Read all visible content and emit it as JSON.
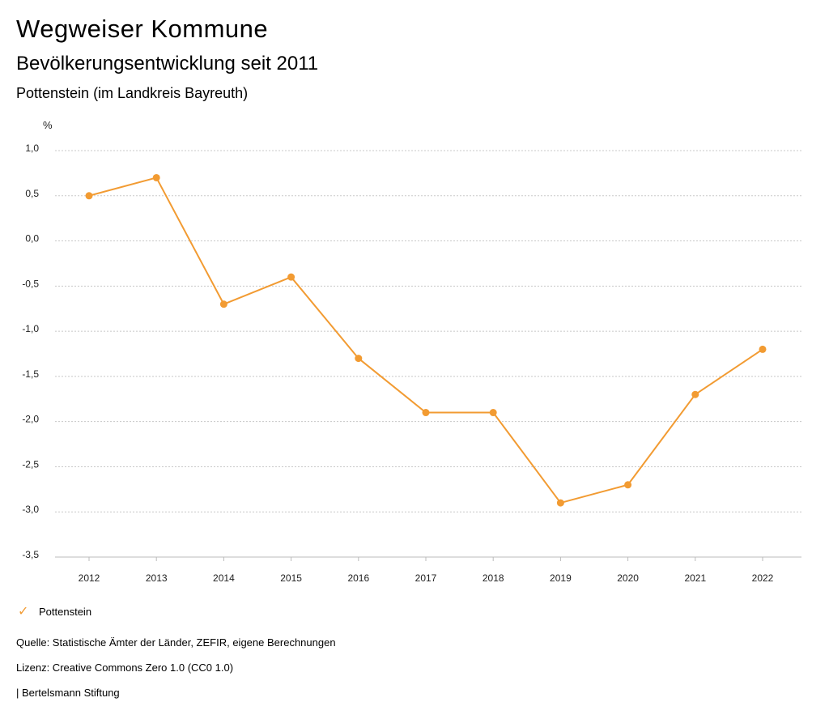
{
  "header": {
    "title": "Wegweiser Kommune",
    "subtitle": "Bevölkerungsentwicklung seit 2011",
    "region": "Pottenstein (im Landkreis Bayreuth)"
  },
  "chart_data": {
    "type": "line",
    "ylabel": "%",
    "ylim": [
      -3.5,
      1.0
    ],
    "yticks": [
      1.0,
      0.5,
      0.0,
      -0.5,
      -1.0,
      -1.5,
      -2.0,
      -2.5,
      -3.0,
      -3.5
    ],
    "ytick_labels": [
      "1,0",
      "0,5",
      "0,0",
      "-0,5",
      "-1,0",
      "-1,5",
      "-2,0",
      "-2,5",
      "-3,0",
      "-3,5"
    ],
    "categories": [
      "2012",
      "2013",
      "2014",
      "2015",
      "2016",
      "2017",
      "2018",
      "2019",
      "2020",
      "2021",
      "2022"
    ],
    "series": [
      {
        "name": "Pottenstein",
        "color": "#f29b32",
        "values": [
          0.5,
          0.7,
          -0.7,
          -0.4,
          -1.3,
          -1.9,
          -1.9,
          -2.9,
          -2.7,
          -1.7,
          -1.2
        ]
      }
    ],
    "grid": true,
    "legend": "bottom-left"
  },
  "legend": {
    "label": "Pottenstein",
    "icon": "check-icon"
  },
  "footer": {
    "source": "Quelle: Statistische Ämter der Länder, ZEFIR, eigene Berechnungen",
    "license": "Lizenz: Creative Commons Zero 1.0 (CC0 1.0)",
    "publisher": "| Bertelsmann Stiftung"
  }
}
